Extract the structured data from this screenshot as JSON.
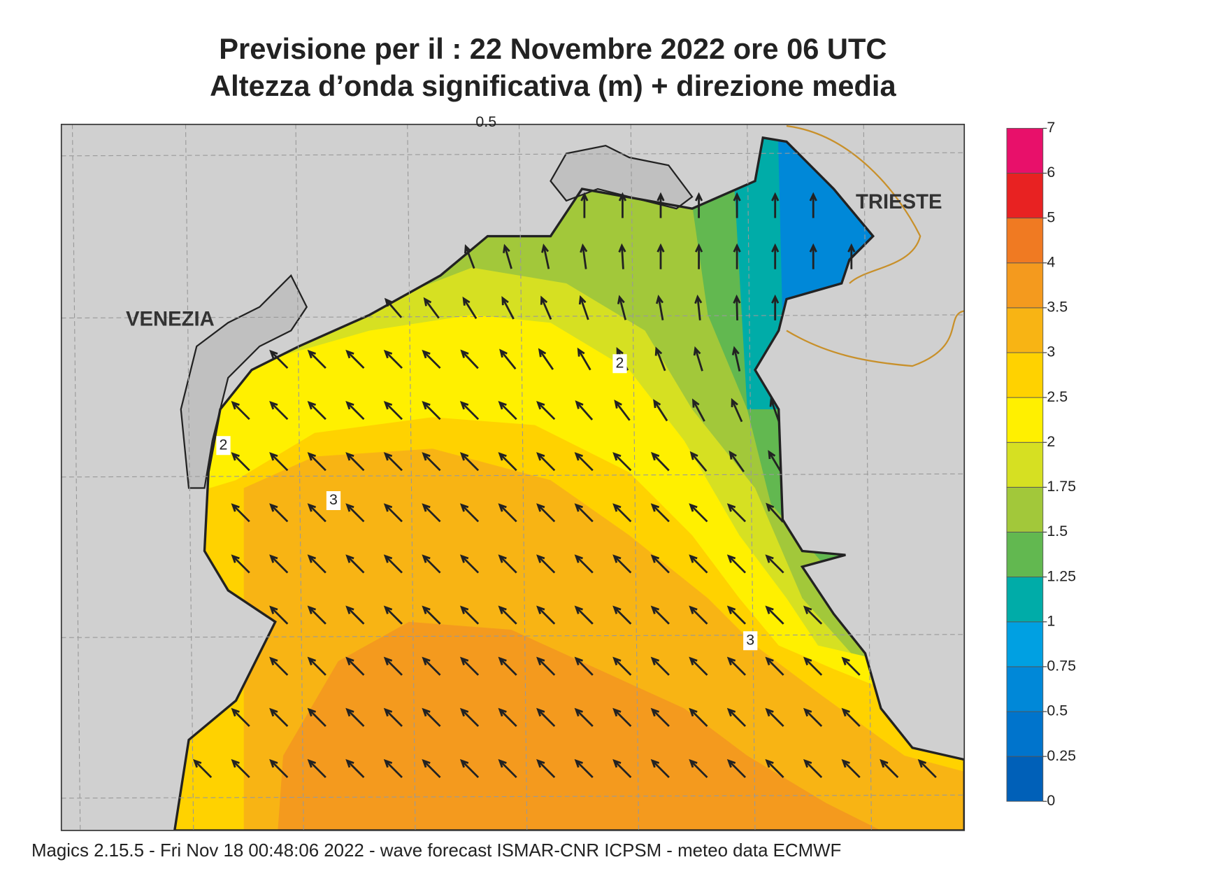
{
  "title": "Previsione per il  :  22 Novembre  2022   ore 06 UTC",
  "subtitle": "Altezza d’onda significativa (m) + direzione media",
  "cities": [
    "VENEZIA",
    "TRIESTE"
  ],
  "contour_labels": [
    0.5,
    2,
    3,
    2,
    3
  ],
  "legend": {
    "levels": [
      0,
      0.25,
      0.5,
      0.75,
      1,
      1.25,
      1.5,
      1.75,
      2,
      2.5,
      3,
      3.5,
      4,
      5,
      6,
      7
    ],
    "colors": [
      "#0060b8",
      "#0074cc",
      "#0088d8",
      "#00a0e2",
      "#00aca8",
      "#62b850",
      "#a2c83a",
      "#d6e022",
      "#fff000",
      "#ffd200",
      "#f8b414",
      "#f49a1e",
      "#f07a22",
      "#e82222",
      "#e8106a"
    ]
  },
  "footer": "Magics 2.15.5 - Fri Nov 18 00:48:06 2022 - wave forecast  ISMAR-CNR  ICPSM - meteo data    ECMWF"
}
